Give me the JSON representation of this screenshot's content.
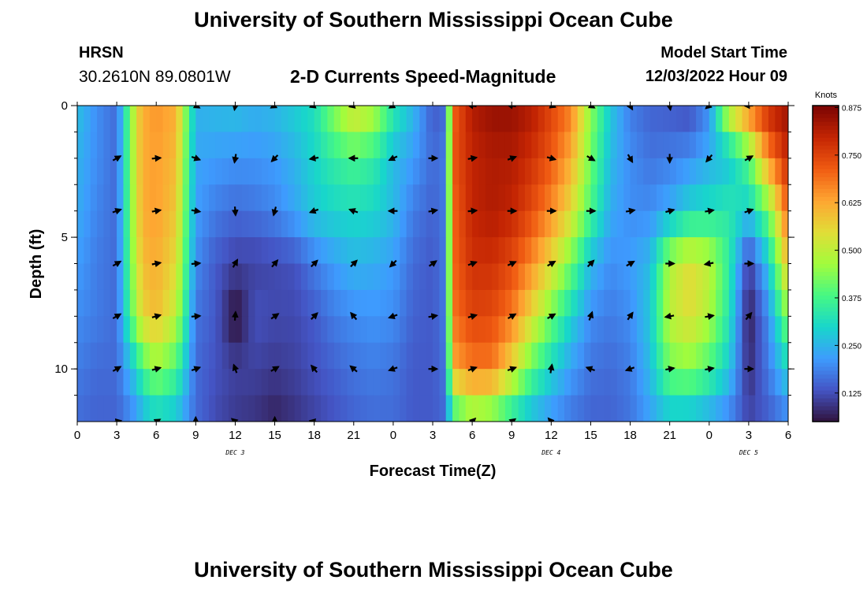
{
  "header": {
    "main_title": "University of Southern Mississippi Ocean Cube",
    "station": "HRSN",
    "coordinates": "30.2610N  89.0801W",
    "plot_title": "2-D Currents Speed-Magnitude",
    "model_start_label": "Model Start Time",
    "model_start_time": "12/03/2022 Hour 09"
  },
  "footer": {
    "title": "University of Southern Mississippi Ocean Cube"
  },
  "chart_data": {
    "type": "heatmap",
    "title": "2-D Currents Speed-Magnitude",
    "xlabel": "Forecast Time(Z)",
    "ylabel": "Depth (ft)",
    "x_unit": "hours since 2022-12-03 00Z",
    "xlim": [
      0,
      54
    ],
    "ylim": [
      0,
      12
    ],
    "x_ticks": [
      0,
      3,
      6,
      9,
      12,
      15,
      18,
      21,
      24,
      27,
      30,
      33,
      36,
      39,
      42,
      45,
      48,
      51,
      54
    ],
    "x_tick_labels": [
      "0",
      "3",
      "6",
      "9",
      "12",
      "15",
      "18",
      "21",
      "0",
      "3",
      "6",
      "9",
      "12",
      "15",
      "18",
      "21",
      "0",
      "3",
      "6"
    ],
    "y_ticks": [
      0,
      5,
      10
    ],
    "y_tick_labels": [
      "0",
      "5",
      "10"
    ],
    "date_labels": [
      {
        "text": "DEC 3",
        "x": 12
      },
      {
        "text": "DEC 4",
        "x": 36
      },
      {
        "text": "DEC 5",
        "x": 51
      }
    ],
    "colorbar": {
      "title": "Knots",
      "ticks": [
        0.125,
        0.25,
        0.375,
        0.5,
        0.625,
        0.75,
        0.875
      ],
      "tick_labels": [
        "0.125",
        "0.250",
        "0.375",
        "0.500",
        "0.625",
        "0.750",
        "0.875"
      ],
      "range": [
        0.05,
        0.88
      ],
      "colors": [
        "#30123b",
        "#4454c4",
        "#3e9bfe",
        "#18d6cb",
        "#46f884",
        "#a2fc3c",
        "#e1dd37",
        "#fea632",
        "#f05b12",
        "#c42503",
        "#7a0403"
      ]
    },
    "depths": [
      0,
      2,
      4,
      6,
      8,
      10,
      12
    ],
    "times": [
      0,
      1.5,
      3,
      4.5,
      5,
      6,
      7.5,
      9,
      10.5,
      12,
      13.5,
      15,
      16.5,
      18,
      19.5,
      21,
      22.5,
      24,
      25.5,
      27,
      28,
      28.5,
      30,
      31.5,
      33,
      34.5,
      36,
      37.5,
      39,
      40.5,
      42,
      43.5,
      45,
      46.5,
      48,
      49.5,
      51,
      52.5,
      54
    ],
    "speed_knots": [
      [
        0.27,
        0.2,
        0.16,
        0.55,
        0.62,
        0.65,
        0.62,
        0.25,
        0.26,
        0.27,
        0.25,
        0.26,
        0.29,
        0.32,
        0.45,
        0.55,
        0.5,
        0.35,
        0.26,
        0.14,
        0.16,
        0.7,
        0.82,
        0.85,
        0.85,
        0.82,
        0.75,
        0.68,
        0.45,
        0.28,
        0.18,
        0.15,
        0.14,
        0.12,
        0.2,
        0.55,
        0.7,
        0.8,
        0.85
      ],
      [
        0.25,
        0.2,
        0.16,
        0.55,
        0.62,
        0.64,
        0.6,
        0.23,
        0.22,
        0.21,
        0.21,
        0.22,
        0.25,
        0.3,
        0.35,
        0.38,
        0.35,
        0.26,
        0.22,
        0.16,
        0.18,
        0.72,
        0.8,
        0.82,
        0.82,
        0.78,
        0.72,
        0.62,
        0.42,
        0.26,
        0.2,
        0.17,
        0.18,
        0.2,
        0.24,
        0.27,
        0.4,
        0.66,
        0.8
      ],
      [
        0.24,
        0.19,
        0.16,
        0.54,
        0.62,
        0.64,
        0.58,
        0.22,
        0.18,
        0.16,
        0.17,
        0.19,
        0.23,
        0.28,
        0.3,
        0.31,
        0.3,
        0.26,
        0.18,
        0.15,
        0.18,
        0.7,
        0.8,
        0.82,
        0.8,
        0.74,
        0.66,
        0.55,
        0.38,
        0.24,
        0.2,
        0.2,
        0.24,
        0.3,
        0.32,
        0.34,
        0.28,
        0.42,
        0.72
      ],
      [
        0.22,
        0.18,
        0.16,
        0.52,
        0.6,
        0.62,
        0.55,
        0.2,
        0.14,
        0.11,
        0.11,
        0.12,
        0.13,
        0.18,
        0.22,
        0.25,
        0.24,
        0.22,
        0.16,
        0.14,
        0.18,
        0.7,
        0.78,
        0.78,
        0.74,
        0.66,
        0.55,
        0.42,
        0.26,
        0.2,
        0.22,
        0.26,
        0.48,
        0.55,
        0.5,
        0.35,
        0.1,
        0.28,
        0.6
      ],
      [
        0.2,
        0.18,
        0.16,
        0.48,
        0.56,
        0.6,
        0.5,
        0.17,
        0.14,
        0.04,
        0.13,
        0.12,
        0.12,
        0.14,
        0.18,
        0.2,
        0.21,
        0.2,
        0.15,
        0.14,
        0.18,
        0.68,
        0.75,
        0.74,
        0.68,
        0.55,
        0.42,
        0.3,
        0.2,
        0.18,
        0.2,
        0.28,
        0.5,
        0.55,
        0.48,
        0.33,
        0.06,
        0.2,
        0.45
      ],
      [
        0.18,
        0.16,
        0.16,
        0.3,
        0.38,
        0.45,
        0.38,
        0.16,
        0.13,
        0.11,
        0.11,
        0.1,
        0.11,
        0.13,
        0.15,
        0.17,
        0.18,
        0.17,
        0.14,
        0.14,
        0.17,
        0.62,
        0.68,
        0.68,
        0.55,
        0.4,
        0.3,
        0.22,
        0.17,
        0.16,
        0.18,
        0.26,
        0.42,
        0.44,
        0.38,
        0.28,
        0.08,
        0.18,
        0.3
      ],
      [
        0.16,
        0.15,
        0.15,
        0.2,
        0.24,
        0.28,
        0.26,
        0.16,
        0.12,
        0.1,
        0.09,
        0.07,
        0.09,
        0.11,
        0.13,
        0.15,
        0.16,
        0.16,
        0.14,
        0.14,
        0.16,
        0.32,
        0.42,
        0.38,
        0.3,
        0.24,
        0.2,
        0.17,
        0.15,
        0.15,
        0.17,
        0.22,
        0.26,
        0.25,
        0.22,
        0.18,
        0.12,
        0.14,
        0.18
      ]
    ],
    "vectors": {
      "depths": [
        0,
        2,
        4,
        6,
        8,
        10,
        12
      ],
      "times": [
        3,
        6,
        9,
        12,
        15,
        18,
        21,
        24,
        27,
        30,
        33,
        36,
        39,
        42,
        45,
        48,
        51
      ],
      "direction_deg": [
        [
          null,
          null,
          120,
          190,
          240,
          250,
          255,
          240,
          null,
          280,
          280,
          110,
          120,
          150,
          170,
          230,
          270
        ],
        [
          60,
          85,
          110,
          190,
          225,
          260,
          270,
          245,
          90,
          80,
          70,
          105,
          120,
          150,
          180,
          220,
          60
        ],
        [
          70,
          80,
          100,
          175,
          195,
          250,
          290,
          270,
          80,
          85,
          90,
          90,
          90,
          80,
          75,
          80,
          70
        ],
        [
          60,
          80,
          85,
          30,
          40,
          45,
          45,
          225,
          55,
          70,
          65,
          60,
          45,
          60,
          90,
          260,
          90
        ],
        [
          60,
          75,
          85,
          5,
          55,
          45,
          320,
          250,
          80,
          75,
          60,
          60,
          20,
          35,
          260,
          80,
          40
        ],
        [
          60,
          75,
          70,
          340,
          60,
          320,
          310,
          250,
          90,
          70,
          70,
          10,
          290,
          250,
          80,
          80,
          90
        ],
        [
          80,
          60,
          0,
          310,
          0,
          280,
          null,
          null,
          null,
          45,
          55,
          320,
          null,
          null,
          null,
          null,
          null
        ]
      ]
    }
  }
}
